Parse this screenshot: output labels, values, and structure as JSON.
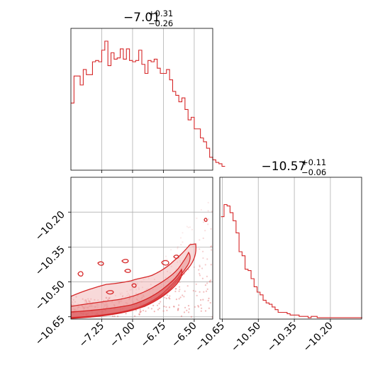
{
  "chart_data": {
    "type": "corner",
    "color": "#d62728",
    "panels": [
      {
        "id": "hist-param1",
        "type": "histogram",
        "title": {
          "median": "−7.01",
          "upper": "+0.31",
          "lower": "−0.26"
        },
        "xlim": [
          -7.5,
          -6.35
        ],
        "xticks": [
          -7.25,
          -7.0,
          -6.75,
          -6.5
        ],
        "grid": true,
        "bins_from": -7.5,
        "bin_width": 0.025,
        "heights": [
          0.52,
          0.73,
          0.73,
          0.66,
          0.78,
          0.74,
          0.74,
          0.84,
          0.85,
          0.84,
          0.93,
          1.0,
          0.81,
          0.91,
          0.86,
          0.87,
          0.94,
          0.86,
          0.94,
          0.85,
          0.84,
          0.85,
          0.93,
          0.82,
          0.75,
          0.85,
          0.84,
          0.86,
          0.79,
          0.75,
          0.75,
          0.78,
          0.7,
          0.61,
          0.58,
          0.53,
          0.56,
          0.47,
          0.39,
          0.41,
          0.32,
          0.32,
          0.25,
          0.22,
          0.17,
          0.1,
          0.08,
          0.06,
          0.05,
          0.03
        ]
      },
      {
        "id": "hist-param2",
        "type": "histogram",
        "title": {
          "median": "−10.57",
          "upper": "+0.11",
          "lower": "−0.06"
        },
        "xlim": [
          -10.66,
          -10.07
        ],
        "xticks": [
          -10.65,
          -10.5,
          -10.35,
          -10.2
        ],
        "xtick_labels": [
          "−10.65",
          "−10.50",
          "−10.35",
          "−10.20"
        ],
        "grid": true,
        "bins_from": -10.655,
        "bin_width": 0.0125,
        "heights": [
          0.76,
          0.85,
          0.84,
          0.79,
          0.73,
          0.64,
          0.5,
          0.47,
          0.37,
          0.36,
          0.3,
          0.24,
          0.2,
          0.18,
          0.14,
          0.12,
          0.11,
          0.09,
          0.07,
          0.05,
          0.05,
          0.05,
          0.04,
          0.03,
          0.03,
          0.03,
          0.02,
          0.02,
          0.02,
          0.01,
          0.02,
          0.02,
          0.01,
          0.01,
          0.01,
          0.01,
          0.01,
          0.01,
          0.01,
          0.01,
          0.01,
          0.01,
          0.01,
          0.01,
          0.01,
          0.01,
          0.01
        ]
      },
      {
        "id": "contour-2d",
        "type": "contour",
        "xlim": [
          -7.5,
          -6.35
        ],
        "ylim": [
          -10.66,
          -10.05
        ],
        "xticks": [
          -7.25,
          -7.0,
          -6.75,
          -6.5
        ],
        "xtick_labels": [
          "−7.25",
          "−7.00",
          "−6.75",
          "−6.50"
        ],
        "yticks": [
          -10.65,
          -10.5,
          -10.35,
          -10.2
        ],
        "ytick_labels": [
          "−10.65",
          "−10.50",
          "−10.35",
          "−10.20"
        ],
        "grid": true
      }
    ]
  }
}
